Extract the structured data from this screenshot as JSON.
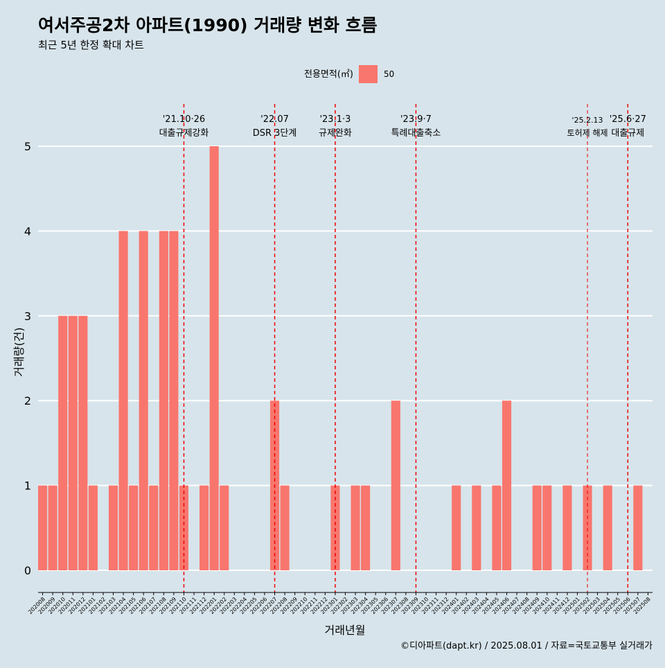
{
  "chart_data": {
    "type": "bar",
    "title": "여서주공2차 아파트(1990) 거래량 변화 흐름",
    "subtitle": "최근 5년 한정 확대 차트",
    "xlabel": "거래년월",
    "ylabel": "거래량(건)",
    "ylim": [
      0,
      5
    ],
    "yticks": [
      0,
      1,
      2,
      3,
      4,
      5
    ],
    "grid": true,
    "legend": {
      "title": "전용면적(㎡)",
      "position": "top",
      "items": [
        {
          "label": "50",
          "color": "#F8766D"
        }
      ]
    },
    "caption": "©디아파트(dapt.kr) / 2025.08.01 / 자료=국토교통부 실거래가",
    "categories": [
      "202008",
      "202009",
      "202010",
      "202011",
      "202012",
      "202101",
      "202102",
      "202103",
      "202104",
      "202105",
      "202106",
      "202107",
      "202108",
      "202109",
      "202110",
      "202111",
      "202112",
      "202201",
      "202202",
      "202203",
      "202204",
      "202205",
      "202206",
      "202207",
      "202208",
      "202209",
      "202210",
      "202211",
      "202212",
      "202301",
      "202302",
      "202303",
      "202304",
      "202305",
      "202306",
      "202307",
      "202308",
      "202309",
      "202310",
      "202311",
      "202312",
      "202401",
      "202402",
      "202403",
      "202404",
      "202405",
      "202406",
      "202407",
      "202408",
      "202409",
      "202410",
      "202411",
      "202412",
      "202501",
      "202502",
      "202503",
      "202504",
      "202505",
      "202506",
      "202507",
      "202508"
    ],
    "series": [
      {
        "name": "50",
        "color": "#F8766D",
        "values": [
          1,
          1,
          3,
          3,
          3,
          1,
          0,
          1,
          4,
          1,
          4,
          1,
          4,
          4,
          1,
          0,
          1,
          5,
          1,
          0,
          0,
          0,
          0,
          2,
          1,
          0,
          0,
          0,
          0,
          1,
          0,
          1,
          1,
          0,
          0,
          2,
          0,
          0,
          0,
          0,
          0,
          1,
          0,
          1,
          0,
          1,
          2,
          0,
          0,
          1,
          1,
          0,
          1,
          0,
          1,
          0,
          1,
          0,
          0,
          1,
          0
        ]
      }
    ],
    "annotations": [
      {
        "date": "'21.10·26",
        "label": "대출규제강화",
        "category": "202110"
      },
      {
        "date": "'22.07",
        "label": "DSR 3단계",
        "category": "202207"
      },
      {
        "date": "'23.1·3",
        "label": "규제완화",
        "category": "202301"
      },
      {
        "date": "'23.9·7",
        "label": "특례대출축소",
        "category": "202309"
      },
      {
        "date": "'25.2.13",
        "label": "토허제 해제",
        "category": "202502"
      },
      {
        "date": "'25.6·27",
        "label": "대출규제",
        "category": "202506"
      }
    ]
  }
}
